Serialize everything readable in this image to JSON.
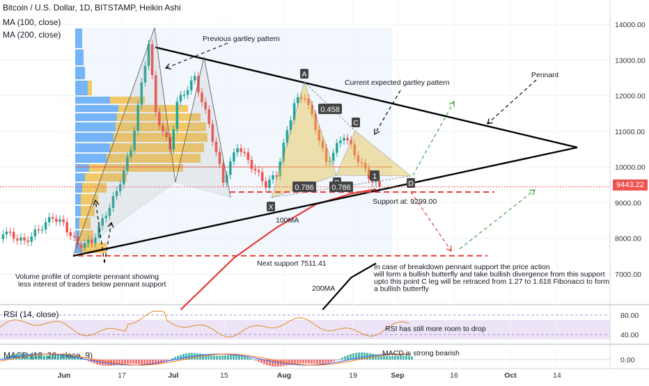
{
  "header": {
    "title": "Bitcoin / U.S. Dollar, 1D, BITSTAMP, Heikin Ashi",
    "indicators": [
      "MA (100, close)",
      "MA (200, close)"
    ]
  },
  "last_price_label": "9443.22",
  "chart_data": [
    {
      "type": "candlestick",
      "title": "Bitcoin / U.S. Dollar, 1D, BITSTAMP, Heikin Ashi",
      "y_ticks": [
        7000,
        8000,
        9000,
        10000,
        11000,
        12000,
        13000,
        14000
      ],
      "y_tick_labels": [
        "7000.00",
        "8000.00",
        "9000.00",
        "10000.00",
        "11000.00",
        "12000.00",
        "13000.00",
        "14000.00"
      ],
      "ylim": [
        5850,
        14500
      ],
      "x_tick_labels": [
        "Jun",
        "17",
        "Jul",
        "15",
        "Aug",
        "19",
        "Sep",
        "16",
        "Oct",
        "14"
      ],
      "series": [
        {
          "name": "MA (100, close)",
          "color": "#e53935",
          "x": [
            "2019-07-05",
            "2019-07-20",
            "2019-08-01",
            "2019-08-12",
            "2019-08-22",
            "2019-08-29"
          ],
          "y": [
            6000,
            7450,
            8300,
            8950,
            9250,
            9380
          ]
        },
        {
          "name": "MA (200, close)",
          "color": "#000000",
          "x": [
            "2019-08-14",
            "2019-08-22",
            "2019-08-29"
          ],
          "y": [
            6000,
            6900,
            7300
          ]
        }
      ],
      "pattern_points": [
        {
          "label": "X",
          "price": 9100
        },
        {
          "label": "A",
          "price": 12350
        },
        {
          "label": "B",
          "price": 9800
        },
        {
          "label": "C",
          "price": 11000
        },
        {
          "label": "D",
          "price": 9620
        }
      ],
      "fib_labels": [
        "0.458",
        "0.786",
        "0.786",
        "1"
      ],
      "annotations": {
        "previous_gartley": "Previous gartley pattern",
        "current_gartley": "Current expected gartley pattern",
        "pennant": "Pennant",
        "support": "Support at: 9299.00",
        "ma100": "100MA",
        "ma200": "200MA",
        "next_support": "Next support 7511.41",
        "volume_note": [
          "Volume profile of complete pennant showing",
          "less interest of traders below pennant support"
        ],
        "breakdown_note": [
          "In case of breakdown pennant support the price action",
          "will form a bullish butterfly and take bullish divergence from this support",
          "upto this point C leg will be retraced from 1.27 to 1.618 Fibonacci to form",
          "a bullish butterfly"
        ]
      }
    },
    {
      "type": "line",
      "title": "RSI (14, close)",
      "y_ticks": [
        40,
        80
      ],
      "y_tick_labels": [
        "40.00",
        "80.00"
      ],
      "ylim": [
        30,
        90
      ],
      "annotation": "RSI has still more room to drop"
    },
    {
      "type": "bar",
      "title": "MACD (12, 26, close, 9)",
      "y_ticks": [
        0
      ],
      "y_tick_labels": [
        "0.00"
      ],
      "annotation": "MACD is strong bearish"
    }
  ]
}
